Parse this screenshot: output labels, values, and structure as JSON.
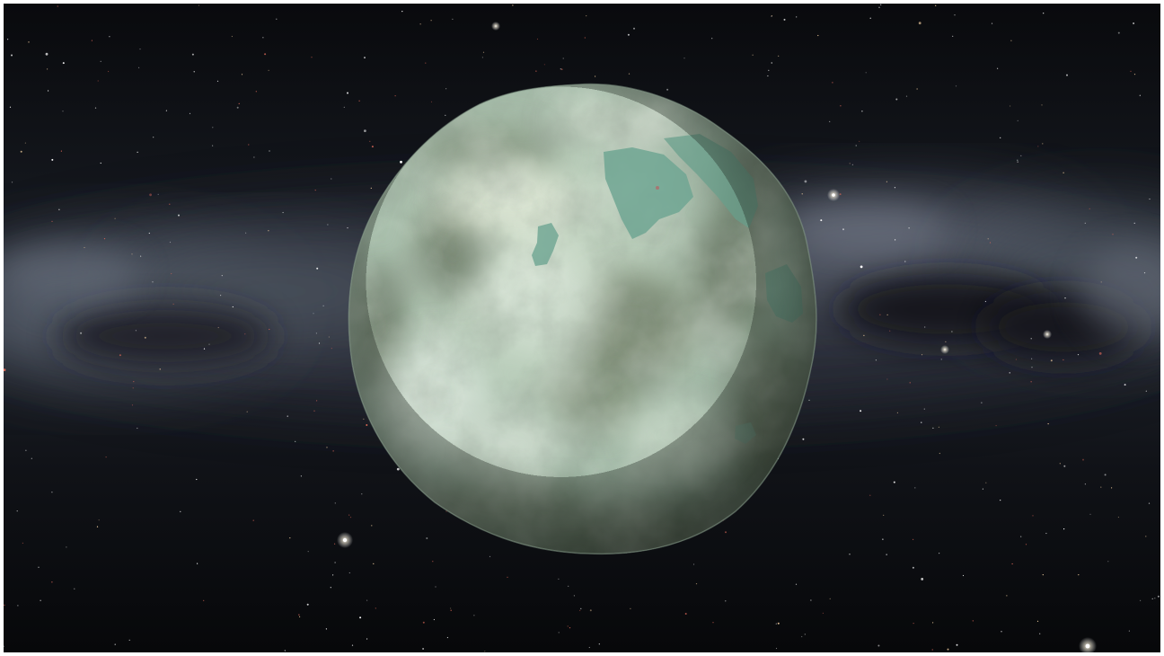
{
  "scene": {
    "type": "space-view",
    "subject": "planet",
    "colors": {
      "space_background": "#0b0c10",
      "milky_way_band": "#5a6170",
      "planet_base": "#a9c2b0",
      "planet_highlight": "#d2dfd0",
      "planet_shadow": "#4d5a4a",
      "water_patches": "#6fa896",
      "star_white": "#ffffff",
      "star_warm": "#ffd9a8",
      "star_red": "#e06a5a"
    }
  }
}
